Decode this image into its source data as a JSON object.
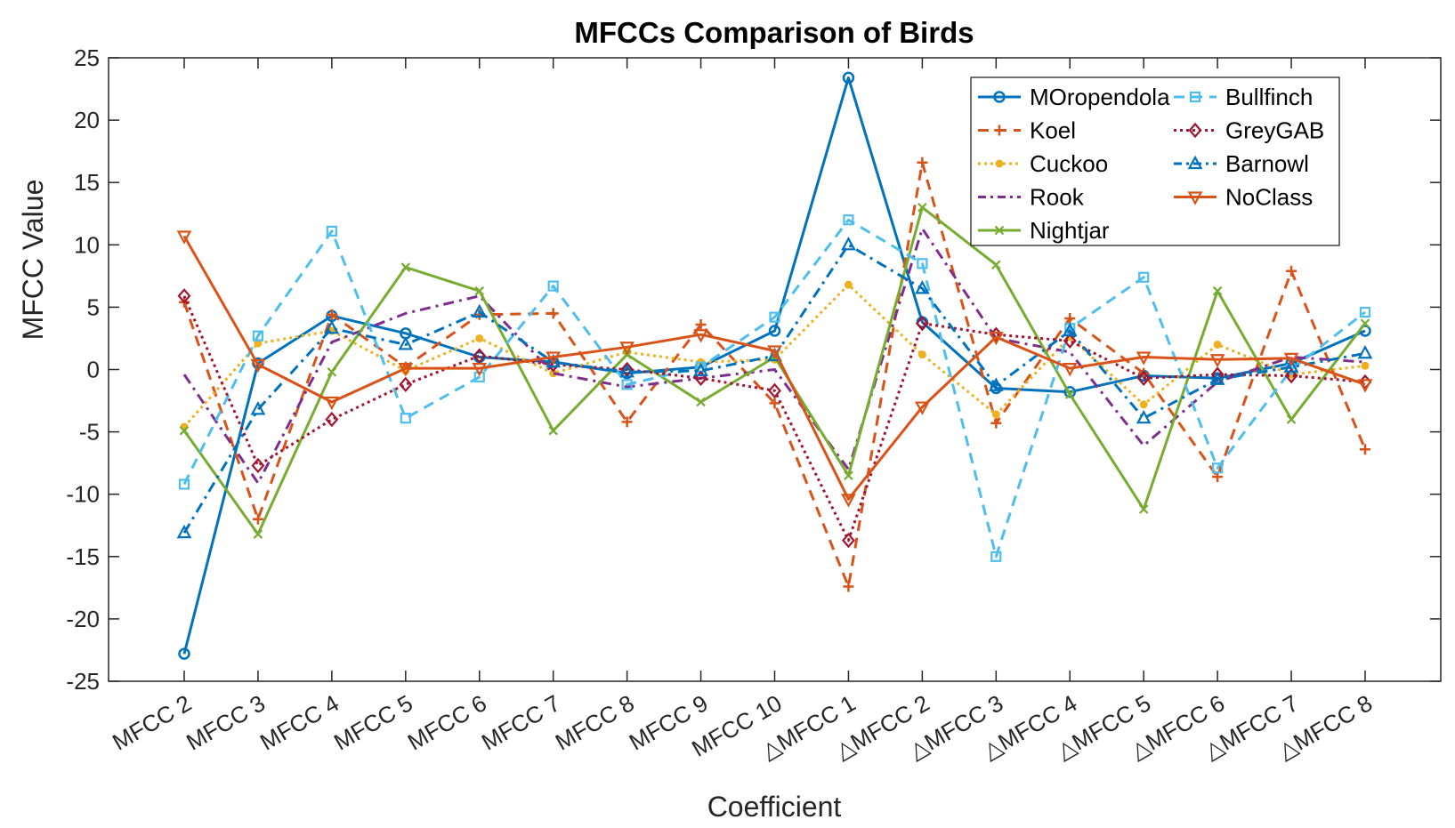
{
  "chart_data": {
    "type": "line",
    "title": "MFCCs Comparison of Birds",
    "xlabel": "Coefficient",
    "ylabel": "MFCC Value",
    "ylim": [
      -25,
      25
    ],
    "yticks": [
      25,
      20,
      15,
      10,
      5,
      0,
      -5,
      -10,
      -15,
      -20,
      -25
    ],
    "grid": false,
    "legend_position": "top-right",
    "categories": [
      "MFCC 2",
      "MFCC 3",
      "MFCC 4",
      "MFCC 5",
      "MFCC 6",
      "MFCC 7",
      "MFCC 8",
      "MFCC 9",
      "MFCC 10",
      "△MFCC 1",
      "△MFCC 2",
      "△MFCC 3",
      "△MFCC 4",
      "△MFCC 5",
      "△MFCC 6",
      "△MFCC 7",
      "△MFCC 8"
    ],
    "series": [
      {
        "name": "MOropendola",
        "color": "#0072BD",
        "dash": "solid",
        "marker": "circle",
        "values": [
          -22.8,
          0.5,
          4.3,
          2.9,
          1.0,
          0.6,
          -0.3,
          0.2,
          3.1,
          23.4,
          3.8,
          -1.5,
          -1.8,
          -0.5,
          -0.7,
          0.5,
          3.1
        ]
      },
      {
        "name": "Koel",
        "color": "#D95319",
        "dash": "dashed",
        "marker": "plus",
        "values": [
          5.4,
          -12.0,
          4.4,
          0.2,
          4.4,
          4.5,
          -4.2,
          3.6,
          -2.7,
          -17.4,
          16.6,
          -4.3,
          4.1,
          -0.3,
          -8.6,
          7.9,
          -6.4
        ]
      },
      {
        "name": "Cuckoo",
        "color": "#EDB120",
        "dash": "dotted",
        "marker": "dot",
        "values": [
          -4.6,
          2.1,
          3.1,
          -0.1,
          2.5,
          -0.3,
          1.4,
          0.6,
          0.8,
          6.8,
          1.2,
          -3.6,
          2.6,
          -2.8,
          2.0,
          -0.4,
          0.3
        ]
      },
      {
        "name": "Rook",
        "color": "#7E2F8E",
        "dash": "dashdot",
        "marker": "none",
        "values": [
          -0.4,
          -9.1,
          2.2,
          4.5,
          5.9,
          -0.3,
          -1.4,
          -0.7,
          0.0,
          -8.0,
          11.3,
          2.5,
          1.4,
          -6.1,
          -1.0,
          1.0,
          0.6
        ]
      },
      {
        "name": "Nightjar",
        "color": "#77AC30",
        "dash": "solid",
        "marker": "x",
        "values": [
          -4.9,
          -13.2,
          -0.2,
          8.2,
          6.3,
          -4.9,
          1.2,
          -2.6,
          1.0,
          -8.5,
          13.0,
          8.4,
          -2.0,
          -11.2,
          6.3,
          -4.0,
          3.7
        ]
      },
      {
        "name": "Bullfinch",
        "color": "#4DBEEE",
        "dash": "dashed",
        "marker": "square",
        "values": [
          -9.2,
          2.7,
          11.1,
          -3.9,
          -0.6,
          6.7,
          -1.2,
          0.2,
          4.2,
          12.0,
          8.5,
          -15.0,
          3.3,
          7.4,
          -7.9,
          0.0,
          4.6
        ]
      },
      {
        "name": "GreyGAB",
        "color": "#A2142F",
        "dash": "dotted",
        "marker": "diamond",
        "values": [
          5.9,
          -7.7,
          -4.0,
          -1.2,
          1.1,
          0.4,
          0.0,
          -0.7,
          -1.7,
          -13.7,
          3.7,
          2.8,
          2.3,
          -0.7,
          -0.4,
          -0.5,
          -1.0
        ]
      },
      {
        "name": "Barnowl",
        "color": "#0072BD",
        "dash": "dashdot",
        "marker": "triangle-up",
        "values": [
          -13.1,
          -3.2,
          3.3,
          2.0,
          4.6,
          0.6,
          -0.2,
          -0.1,
          1.1,
          10.0,
          6.5,
          -1.3,
          3.1,
          -3.9,
          -0.8,
          0.2,
          1.3
        ]
      },
      {
        "name": "NoClass",
        "color": "#D95319",
        "dash": "solid",
        "marker": "triangle-down",
        "values": [
          10.7,
          0.4,
          -2.6,
          0.1,
          0.1,
          1.0,
          1.8,
          2.8,
          1.5,
          -10.4,
          -3.0,
          2.6,
          0.1,
          1.0,
          0.8,
          0.9,
          -1.2
        ]
      }
    ]
  }
}
